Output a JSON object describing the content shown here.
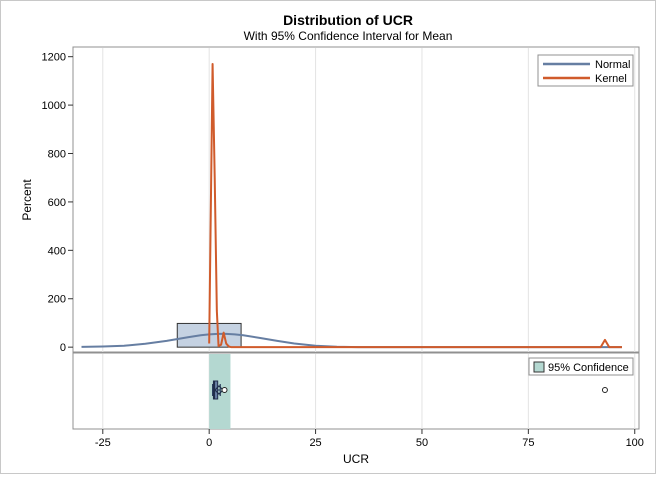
{
  "chart_data": {
    "type": "histogram_boxplot",
    "title": "Distribution of UCR",
    "subtitle": "With 95% Confidence Interval for Mean",
    "xlabel": "UCR",
    "ylabel": "Percent",
    "xlim": [
      -32,
      101
    ],
    "ylim": [
      -20,
      1240
    ],
    "x_ticks": [
      -25,
      0,
      25,
      50,
      75,
      100
    ],
    "y_ticks": [
      0,
      200,
      400,
      600,
      800,
      1000,
      1200
    ],
    "grid": "vertical",
    "legend_position": "top-right",
    "histogram": {
      "bars": [
        {
          "x_start": -7.5,
          "x_end": 7.5,
          "percent": 98
        }
      ]
    },
    "series": [
      {
        "name": "Normal",
        "color": "#667eA2",
        "x": [
          -30,
          -25,
          -20,
          -15,
          -10,
          -5,
          -2,
          0,
          2,
          4,
          6,
          8,
          12,
          16,
          20,
          25,
          30,
          35,
          40,
          60,
          80,
          97
        ],
        "y": [
          1,
          2.5,
          6,
          14,
          26,
          41,
          49,
          53,
          55,
          55,
          53,
          49,
          38,
          26,
          15,
          6,
          1.5,
          0.3,
          0,
          0,
          0,
          0
        ]
      },
      {
        "name": "Kernel",
        "color": "#D05B2B",
        "x": [
          0,
          0.3,
          0.8,
          1.3,
          1.8,
          2.2,
          2.8,
          3.4,
          4.0,
          4.6,
          5.2,
          6,
          20,
          50,
          90,
          92,
          93,
          94,
          95,
          97
        ],
        "y": [
          15,
          450,
          1170,
          700,
          150,
          5,
          10,
          60,
          15,
          3,
          0,
          0,
          0,
          0,
          0,
          0,
          30,
          0,
          0,
          0
        ]
      }
    ],
    "boxplot": {
      "ci_legend": "95% Confidence",
      "ci_low": 0,
      "ci_high": 5,
      "whisker_low": 0.8,
      "q1": 1,
      "median": 1.2,
      "q3": 2,
      "whisker_high": 2.6,
      "mean": 2.3,
      "outliers": [
        3.6,
        93
      ]
    },
    "colors": {
      "histogram_fill": "#C5D2E2",
      "histogram_stroke": "#333333",
      "ci_band": "#B4D8D1",
      "box_fill": "#667eA2",
      "grid": "#e3e3e3",
      "frame": "#909090"
    }
  }
}
